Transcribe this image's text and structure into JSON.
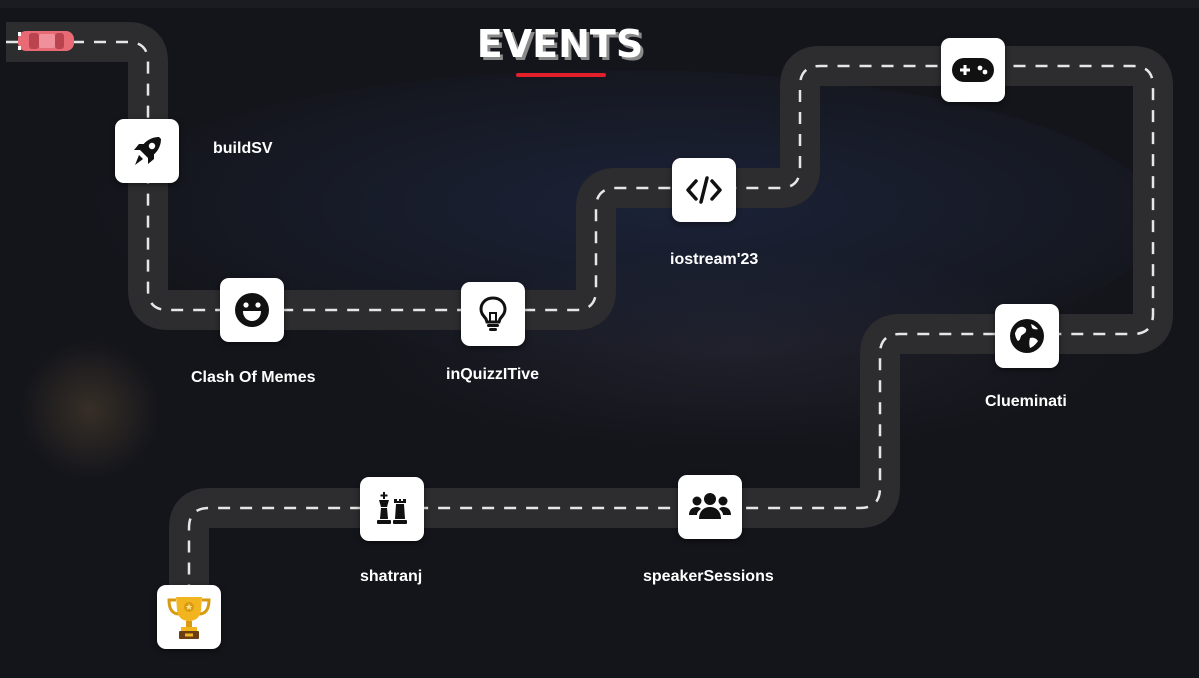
{
  "header": {
    "title": "EVENTS"
  },
  "events": [
    {
      "label": "buildSV",
      "icon": "rocket-icon"
    },
    {
      "label": "Clash Of Memes",
      "icon": "smiley-face-icon"
    },
    {
      "label": "inQuizzITive",
      "icon": "lightbulb-icon"
    },
    {
      "label": "iostream'23",
      "icon": "code-brackets-icon"
    },
    {
      "label": "",
      "icon": "gamepad-icon"
    },
    {
      "label": "Clueminati",
      "icon": "globe-icon"
    },
    {
      "label": "speakerSessions",
      "icon": "group-users-icon"
    },
    {
      "label": "shatranj",
      "icon": "chess-pieces-icon"
    },
    {
      "label": "",
      "icon": "trophy-icon"
    }
  ],
  "colors": {
    "background": "#14151b",
    "road": "#2d2d2f",
    "lane_dash": "#e6e6e6",
    "accent": "#e3202a",
    "tile": "#ffffff",
    "car": "#e86a74",
    "trophy": "#f2b51f"
  }
}
